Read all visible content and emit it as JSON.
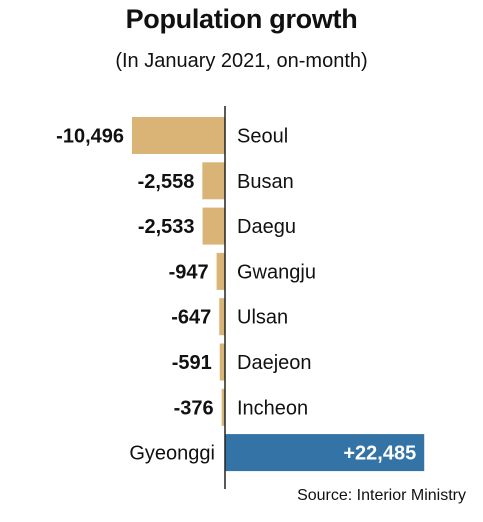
{
  "chart_data": {
    "type": "bar",
    "orientation": "horizontal",
    "title": "Population growth",
    "subtitle": "(In January 2021, on-month)",
    "source": "Source: Interior Ministry",
    "categories": [
      "Seoul",
      "Busan",
      "Daegu",
      "Gwangju",
      "Ulsan",
      "Daejeon",
      "Incheon",
      "Gyeonggi"
    ],
    "values": [
      -10496,
      -2558,
      -2533,
      -947,
      -647,
      -591,
      -376,
      22485
    ],
    "value_labels": [
      "-10,496",
      "-2,558",
      "-2,533",
      "-947",
      "-647",
      "-591",
      "-376",
      "+22,485"
    ],
    "negative_color": "#d9b476",
    "positive_color": "#3373a6"
  }
}
